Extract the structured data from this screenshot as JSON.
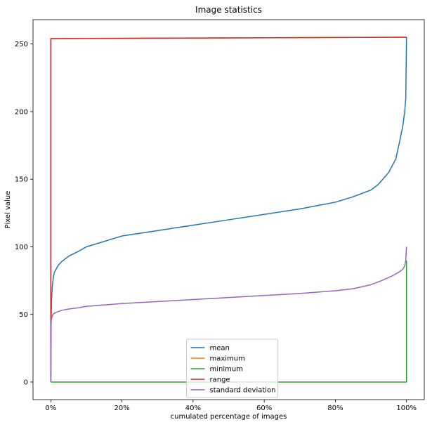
{
  "chart_data": {
    "type": "line",
    "title": "Image statistics",
    "xlabel": "cumulated percentage of images",
    "ylabel": "Pixel value",
    "xlim": [
      -0.05,
      1.05
    ],
    "ylim": [
      -13,
      268
    ],
    "x_ticks": [
      {
        "value": 0.0,
        "label": "0%"
      },
      {
        "value": 0.2,
        "label": "20%"
      },
      {
        "value": 0.4,
        "label": "40%"
      },
      {
        "value": 0.6,
        "label": "60%"
      },
      {
        "value": 0.8,
        "label": "80%"
      },
      {
        "value": 1.0,
        "label": "100%"
      }
    ],
    "y_ticks": [
      {
        "value": 0,
        "label": "0"
      },
      {
        "value": 50,
        "label": "50"
      },
      {
        "value": 100,
        "label": "100"
      },
      {
        "value": 150,
        "label": "150"
      },
      {
        "value": 200,
        "label": "200"
      },
      {
        "value": 250,
        "label": "250"
      }
    ],
    "grid": false,
    "legend_position": "bottom-center",
    "series": [
      {
        "name": "mean",
        "color": "#1f77b4",
        "x": [
          0.0,
          0.001,
          0.002,
          0.004,
          0.007,
          0.01,
          0.02,
          0.03,
          0.05,
          0.08,
          0.1,
          0.15,
          0.2,
          0.3,
          0.4,
          0.5,
          0.6,
          0.7,
          0.8,
          0.85,
          0.9,
          0.92,
          0.95,
          0.97,
          0.98,
          0.99,
          0.995,
          0.998,
          1.0
        ],
        "y": [
          0,
          45,
          60,
          70,
          77,
          81,
          86,
          89,
          93,
          97,
          100,
          104,
          108,
          112,
          116,
          120,
          124,
          128,
          133,
          137,
          142,
          146,
          155,
          165,
          177,
          190,
          200,
          210,
          255
        ]
      },
      {
        "name": "maximum",
        "color": "#ff7f0e",
        "x": [
          0.0,
          0.0,
          0.002,
          1.0,
          1.0
        ],
        "y": [
          0,
          254,
          254,
          255,
          255
        ]
      },
      {
        "name": "minimum",
        "color": "#2ca02c",
        "x": [
          0.0,
          0.99,
          1.0,
          1.0
        ],
        "y": [
          0,
          0,
          0,
          90
        ]
      },
      {
        "name": "range",
        "color": "#d62728",
        "x": [
          0.0,
          0.0,
          0.002,
          1.0,
          1.0
        ],
        "y": [
          0,
          254,
          254,
          255,
          255
        ]
      },
      {
        "name": "standard deviation",
        "color": "#9467bd",
        "x": [
          0.0,
          0.001,
          0.003,
          0.006,
          0.01,
          0.02,
          0.03,
          0.05,
          0.08,
          0.1,
          0.15,
          0.2,
          0.3,
          0.4,
          0.5,
          0.6,
          0.7,
          0.8,
          0.85,
          0.9,
          0.93,
          0.96,
          0.98,
          0.99,
          0.995,
          0.998,
          1.0
        ],
        "y": [
          0,
          45,
          48,
          50,
          51,
          52,
          53,
          54,
          55,
          56,
          57,
          58,
          59.5,
          61,
          62.5,
          64,
          65.5,
          67.5,
          69,
          72,
          75,
          78.5,
          81.5,
          83.5,
          86,
          90,
          100
        ]
      }
    ]
  }
}
